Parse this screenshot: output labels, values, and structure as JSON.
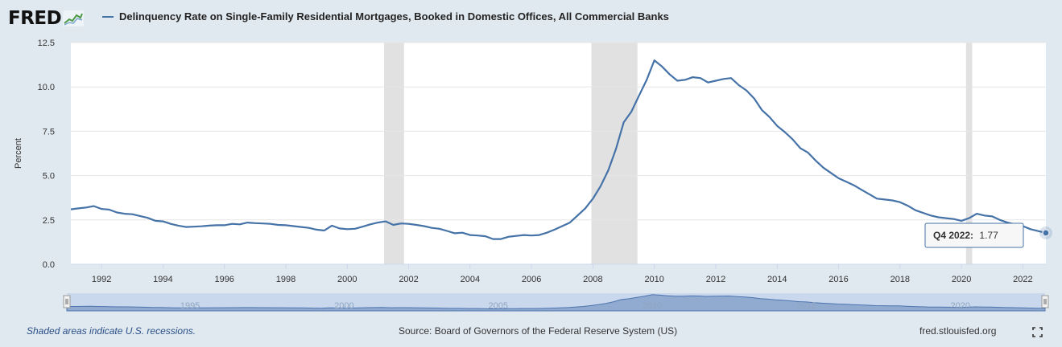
{
  "header": {
    "logo_text": "FRED",
    "series_title": "Delinquency Rate on Single-Family Residential Mortgages, Booked in Domestic Offices, All Commercial Banks",
    "series_color": "#4572a7"
  },
  "footer": {
    "recession_note": "Shaded areas indicate U.S. recessions.",
    "source": "Source: Board of Governors of the Federal Reserve System (US)",
    "site": "fred.stlouisfed.org"
  },
  "tooltip": {
    "label": "Q4 2022:",
    "value": "1.77"
  },
  "navigator": {
    "labels": [
      "1995",
      "2000",
      "2005",
      "2010",
      "2015",
      "2020"
    ]
  },
  "chart_data": {
    "type": "line",
    "ylabel": "Percent",
    "ylim": [
      0,
      12.5
    ],
    "yticks": [
      "0.0",
      "2.5",
      "5.0",
      "7.5",
      "10.0",
      "12.5"
    ],
    "xlim": [
      1991.0,
      2022.75
    ],
    "xticks": [
      "1992",
      "1994",
      "1996",
      "1998",
      "2000",
      "2002",
      "2004",
      "2006",
      "2008",
      "2010",
      "2012",
      "2014",
      "2016",
      "2018",
      "2020",
      "2022"
    ],
    "grid": true,
    "recessions": [
      [
        2001.2,
        2001.85
      ],
      [
        2007.95,
        2009.45
      ],
      [
        2020.15,
        2020.35
      ]
    ],
    "series": [
      {
        "color": "#4572a7",
        "points": [
          [
            1991.0,
            3.1
          ],
          [
            1991.25,
            3.15
          ],
          [
            1991.5,
            3.2
          ],
          [
            1991.75,
            3.28
          ],
          [
            1992.0,
            3.12
          ],
          [
            1992.25,
            3.08
          ],
          [
            1992.5,
            2.92
          ],
          [
            1992.75,
            2.85
          ],
          [
            1993.0,
            2.82
          ],
          [
            1993.25,
            2.72
          ],
          [
            1993.5,
            2.62
          ],
          [
            1993.75,
            2.45
          ],
          [
            1994.0,
            2.42
          ],
          [
            1994.25,
            2.28
          ],
          [
            1994.5,
            2.18
          ],
          [
            1994.75,
            2.1
          ],
          [
            1995.0,
            2.12
          ],
          [
            1995.25,
            2.14
          ],
          [
            1995.5,
            2.18
          ],
          [
            1995.75,
            2.2
          ],
          [
            1996.0,
            2.2
          ],
          [
            1996.25,
            2.28
          ],
          [
            1996.5,
            2.25
          ],
          [
            1996.75,
            2.35
          ],
          [
            1997.0,
            2.32
          ],
          [
            1997.25,
            2.3
          ],
          [
            1997.5,
            2.28
          ],
          [
            1997.75,
            2.22
          ],
          [
            1998.0,
            2.2
          ],
          [
            1998.25,
            2.15
          ],
          [
            1998.5,
            2.1
          ],
          [
            1998.75,
            2.05
          ],
          [
            1999.0,
            1.95
          ],
          [
            1999.25,
            1.9
          ],
          [
            1999.5,
            2.18
          ],
          [
            1999.75,
            2.02
          ],
          [
            2000.0,
            1.98
          ],
          [
            2000.25,
            2.0
          ],
          [
            2000.5,
            2.12
          ],
          [
            2000.75,
            2.25
          ],
          [
            2001.0,
            2.35
          ],
          [
            2001.25,
            2.42
          ],
          [
            2001.5,
            2.22
          ],
          [
            2001.75,
            2.3
          ],
          [
            2002.0,
            2.28
          ],
          [
            2002.25,
            2.22
          ],
          [
            2002.5,
            2.15
          ],
          [
            2002.75,
            2.05
          ],
          [
            2003.0,
            2.0
          ],
          [
            2003.25,
            1.88
          ],
          [
            2003.5,
            1.75
          ],
          [
            2003.75,
            1.78
          ],
          [
            2004.0,
            1.65
          ],
          [
            2004.25,
            1.62
          ],
          [
            2004.5,
            1.58
          ],
          [
            2004.75,
            1.42
          ],
          [
            2005.0,
            1.42
          ],
          [
            2005.25,
            1.55
          ],
          [
            2005.5,
            1.6
          ],
          [
            2005.75,
            1.65
          ],
          [
            2006.0,
            1.62
          ],
          [
            2006.25,
            1.65
          ],
          [
            2006.5,
            1.78
          ],
          [
            2006.75,
            1.95
          ],
          [
            2007.0,
            2.15
          ],
          [
            2007.25,
            2.35
          ],
          [
            2007.5,
            2.75
          ],
          [
            2007.75,
            3.15
          ],
          [
            2008.0,
            3.7
          ],
          [
            2008.25,
            4.4
          ],
          [
            2008.5,
            5.3
          ],
          [
            2008.75,
            6.5
          ],
          [
            2009.0,
            8.0
          ],
          [
            2009.25,
            8.6
          ],
          [
            2009.5,
            9.5
          ],
          [
            2009.75,
            10.4
          ],
          [
            2010.0,
            11.5
          ],
          [
            2010.25,
            11.15
          ],
          [
            2010.5,
            10.7
          ],
          [
            2010.75,
            10.35
          ],
          [
            2011.0,
            10.4
          ],
          [
            2011.25,
            10.55
          ],
          [
            2011.5,
            10.5
          ],
          [
            2011.75,
            10.25
          ],
          [
            2012.0,
            10.35
          ],
          [
            2012.25,
            10.45
          ],
          [
            2012.5,
            10.5
          ],
          [
            2012.75,
            10.1
          ],
          [
            2013.0,
            9.8
          ],
          [
            2013.25,
            9.35
          ],
          [
            2013.5,
            8.7
          ],
          [
            2013.75,
            8.3
          ],
          [
            2014.0,
            7.8
          ],
          [
            2014.25,
            7.45
          ],
          [
            2014.5,
            7.05
          ],
          [
            2014.75,
            6.55
          ],
          [
            2015.0,
            6.3
          ],
          [
            2015.25,
            5.85
          ],
          [
            2015.5,
            5.45
          ],
          [
            2015.75,
            5.15
          ],
          [
            2016.0,
            4.85
          ],
          [
            2016.25,
            4.65
          ],
          [
            2016.5,
            4.45
          ],
          [
            2016.75,
            4.2
          ],
          [
            2017.0,
            3.95
          ],
          [
            2017.25,
            3.7
          ],
          [
            2017.5,
            3.65
          ],
          [
            2017.75,
            3.6
          ],
          [
            2018.0,
            3.5
          ],
          [
            2018.25,
            3.3
          ],
          [
            2018.5,
            3.05
          ],
          [
            2018.75,
            2.9
          ],
          [
            2019.0,
            2.75
          ],
          [
            2019.25,
            2.65
          ],
          [
            2019.5,
            2.6
          ],
          [
            2019.75,
            2.55
          ],
          [
            2020.0,
            2.45
          ],
          [
            2020.25,
            2.6
          ],
          [
            2020.5,
            2.85
          ],
          [
            2020.75,
            2.75
          ],
          [
            2021.0,
            2.7
          ],
          [
            2021.25,
            2.5
          ],
          [
            2021.5,
            2.35
          ],
          [
            2021.75,
            2.25
          ],
          [
            2022.0,
            2.15
          ],
          [
            2022.25,
            1.98
          ],
          [
            2022.5,
            1.87
          ],
          [
            2022.75,
            1.77
          ]
        ]
      }
    ]
  }
}
